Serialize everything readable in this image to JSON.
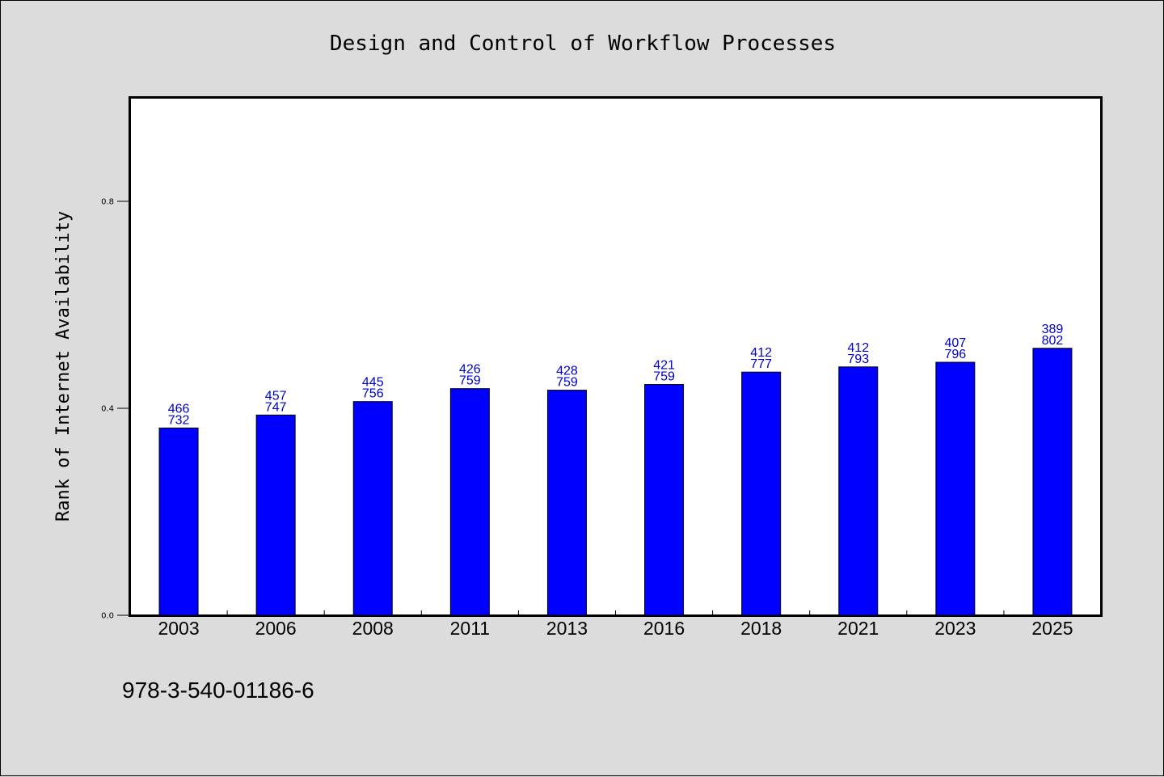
{
  "chart_data": {
    "type": "bar",
    "title": "Design and Control of Workflow Processes",
    "xlabel": "",
    "ylabel": "Rank of Internet Availability",
    "ylim": [
      0,
      1.0
    ],
    "yticks": [
      0.0,
      0.4,
      0.8
    ],
    "ytick_labels": [
      "0.0",
      "0.4",
      "0.8"
    ],
    "categories": [
      "2003",
      "2006",
      "2008",
      "2011",
      "2013",
      "2016",
      "2018",
      "2021",
      "2023",
      "2025"
    ],
    "values": [
      0.362,
      0.387,
      0.413,
      0.438,
      0.435,
      0.446,
      0.47,
      0.48,
      0.489,
      0.516
    ],
    "labels_top": [
      "466",
      "457",
      "445",
      "426",
      "428",
      "421",
      "412",
      "412",
      "407",
      "389"
    ],
    "labels_bottom": [
      "732",
      "747",
      "756",
      "759",
      "759",
      "759",
      "777",
      "793",
      "796",
      "802"
    ],
    "bar_color": "#0000ff",
    "label_color": "#0000cc",
    "grid": false
  },
  "footnote": "978-3-540-01186-6"
}
